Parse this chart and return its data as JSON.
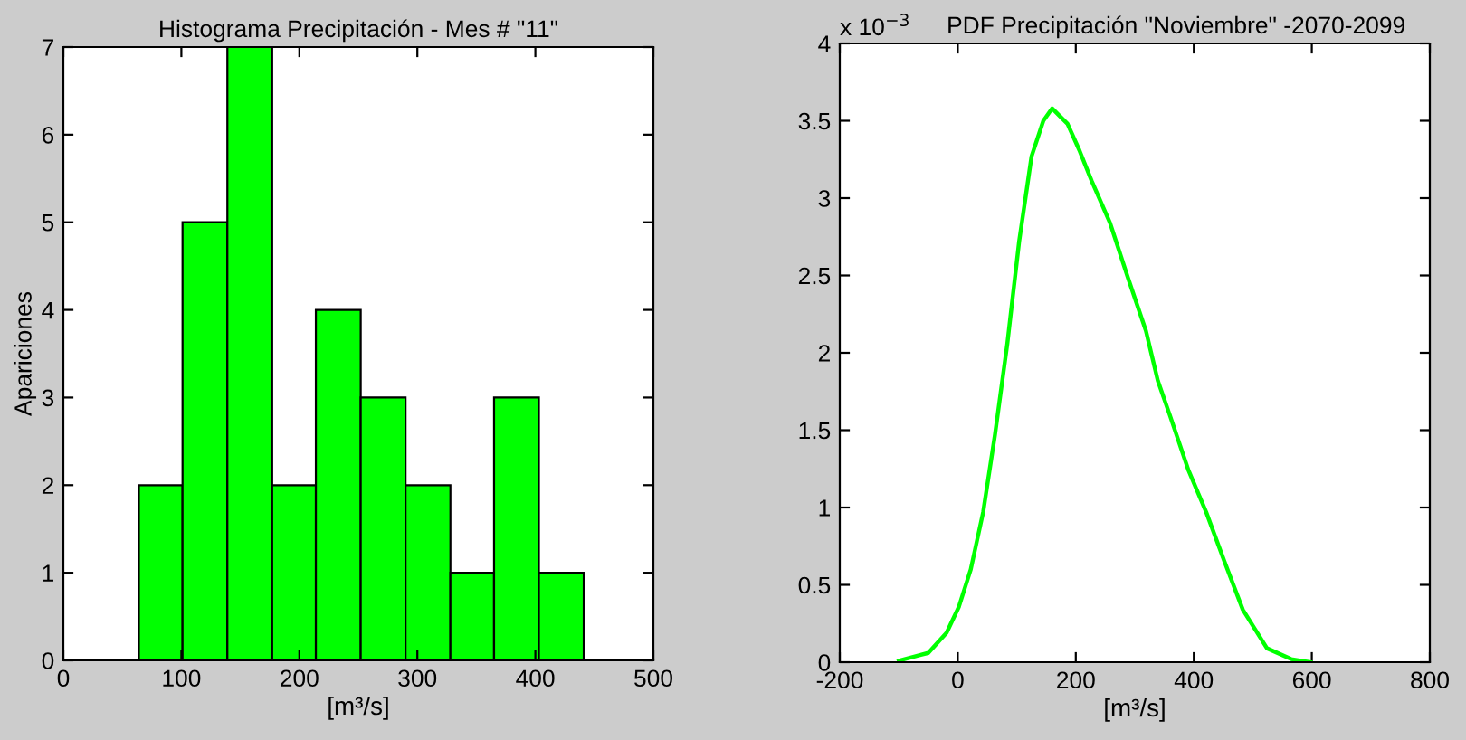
{
  "chart_data": [
    {
      "type": "histogram",
      "title": "Histograma Precipitación - Mes # \"11\"",
      "xlabel": "[m³/s]",
      "ylabel": "Apariciones",
      "bins": [
        64,
        101,
        139,
        177,
        214,
        252,
        290,
        328,
        365,
        403,
        441
      ],
      "values": [
        2,
        5,
        7,
        2,
        4,
        3,
        2,
        1,
        3,
        1
      ],
      "color": "#00ff00",
      "xlim": [
        0,
        500
      ],
      "xticks": [
        0,
        100,
        200,
        300,
        400,
        500
      ],
      "ylim": [
        0,
        7
      ],
      "yticks": [
        0,
        1,
        2,
        3,
        4,
        5,
        6,
        7
      ],
      "grid": false
    },
    {
      "type": "line",
      "title": "PDF Precipitación \"Noviembre\" -2070-2099",
      "xlabel": "[m³/s]",
      "x": [
        -100,
        -50,
        -19,
        2,
        22,
        43,
        63,
        84,
        104,
        125,
        145,
        160,
        186,
        206,
        227,
        258,
        288,
        319,
        339,
        360,
        391,
        421,
        452,
        483,
        524,
        565,
        598
      ],
      "values": [
        0.01,
        0.06,
        0.19,
        0.36,
        0.6,
        0.97,
        1.47,
        2.06,
        2.72,
        3.27,
        3.5,
        3.58,
        3.48,
        3.31,
        3.11,
        2.84,
        2.49,
        2.14,
        1.82,
        1.59,
        1.24,
        0.97,
        0.65,
        0.34,
        0.09,
        0.02,
        0.0
      ],
      "color": "#00ff00",
      "xlim": [
        -200,
        800
      ],
      "xticks": [
        -200,
        0,
        200,
        400,
        600,
        800
      ],
      "ylim": [
        0,
        4
      ],
      "yticks": [
        0,
        0.5,
        1,
        1.5,
        2,
        2.5,
        3,
        3.5,
        4
      ],
      "grid": false,
      "annotations": [
        "x 10$^{−3}$"
      ]
    }
  ]
}
